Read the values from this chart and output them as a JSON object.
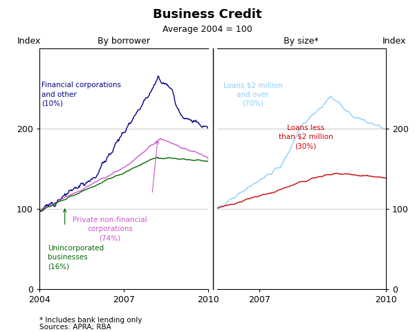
{
  "title": "Business Credit",
  "subtitle": "Average 2004 = 100",
  "ylabel_left": "Index",
  "ylabel_right": "Index",
  "footnote1": "* Includes bank lending only",
  "footnote2": "Sources: APRA; RBA",
  "panel_left_label": "By borrower",
  "panel_right_label": "By size*",
  "colors": {
    "financial": "#000080",
    "private": "#cc55cc",
    "unincorporated": "#006600",
    "loans_large": "#88ccff",
    "loans_small": "#cc0000"
  }
}
